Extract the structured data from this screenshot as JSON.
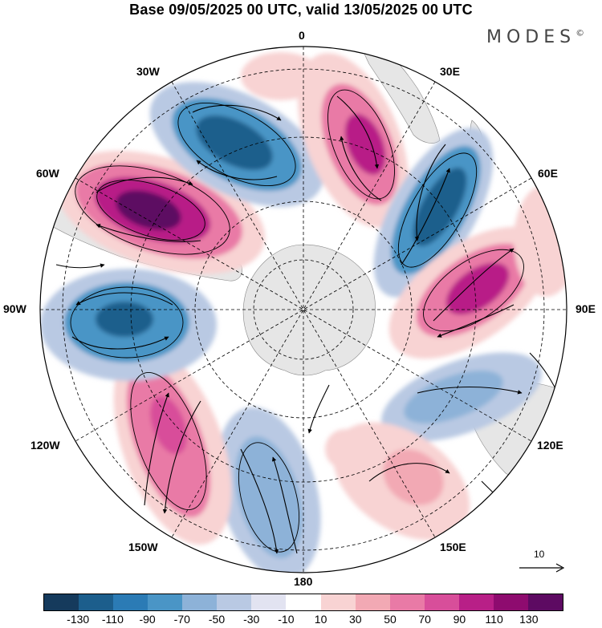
{
  "title": "Base 09/05/2025 00 UTC, valid 13/05/2025 00 UTC",
  "brand": "MODES",
  "brand_mark": "©",
  "longitude_labels": {
    "lon_0": "0",
    "lon_30e": "30E",
    "lon_60e": "60E",
    "lon_90e": "90E",
    "lon_120e": "120E",
    "lon_150e": "150E",
    "lon_180": "180",
    "lon_150w": "150W",
    "lon_120w": "120W",
    "lon_90w": "90W",
    "lon_60w": "60W",
    "lon_30w": "30W"
  },
  "projection": "south polar stereographic",
  "reference_vector": {
    "label": "10"
  },
  "colorbar": {
    "labels": [
      "-130",
      "-110",
      "-90",
      "-70",
      "-50",
      "-30",
      "-10",
      "10",
      "30",
      "50",
      "70",
      "90",
      "110",
      "130"
    ],
    "colors": [
      "#153a5c",
      "#1c5e8c",
      "#2b7bb5",
      "#4a95c6",
      "#8db2d8",
      "#b9c9e3",
      "#e2e3f1",
      "#ffffff",
      "#f8d3d3",
      "#f2a9b4",
      "#e97aa6",
      "#d84e9a",
      "#b81f87",
      "#8e0b6f",
      "#5d0a62"
    ]
  },
  "anomaly_centers": [
    {
      "name": "trough-south-atlantic",
      "sign": "negative",
      "level": -90
    },
    {
      "name": "ridge-south-america",
      "sign": "positive",
      "level": 130
    },
    {
      "name": "trough-southeast-pacific",
      "sign": "negative",
      "level": -110
    },
    {
      "name": "ridge-east-pacific",
      "sign": "positive",
      "level": 70
    },
    {
      "name": "trough-central-pacific",
      "sign": "negative",
      "level": -50
    },
    {
      "name": "ridge-southwest-pacific",
      "sign": "positive",
      "level": 50
    },
    {
      "name": "trough-south-australia",
      "sign": "negative",
      "level": -30
    },
    {
      "name": "ridge-south-indian-ocean",
      "sign": "positive",
      "level": 110
    },
    {
      "name": "trough-west-indian-ocean",
      "sign": "negative",
      "level": -110
    },
    {
      "name": "ridge-south-africa",
      "sign": "positive",
      "level": 110
    }
  ]
}
